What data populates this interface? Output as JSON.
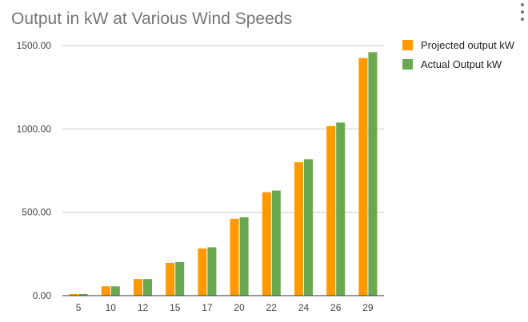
{
  "header": {
    "menu_icon": "more-vert-icon"
  },
  "chart_data": {
    "type": "bar",
    "title": "Output in kW at Various Wind Speeds",
    "xlabel": "",
    "ylabel": "",
    "categories": [
      "5",
      "10",
      "12",
      "15",
      "17",
      "20",
      "22",
      "24",
      "26",
      "29"
    ],
    "series": [
      {
        "name": "Projected output kW",
        "color": "#ff9900",
        "values": [
          10,
          56,
          100,
          197,
          283,
          461,
          620,
          800,
          1017,
          1425
        ]
      },
      {
        "name": "Actual Output kW",
        "color": "#6aa84f",
        "values": [
          10,
          56,
          100,
          201,
          290,
          470,
          630,
          818,
          1038,
          1460
        ]
      }
    ],
    "yticks": [
      "0.00",
      "500.00",
      "1000.00",
      "1500.00"
    ],
    "ylim": [
      0,
      1500
    ],
    "grid": true,
    "legend_position": "right"
  }
}
